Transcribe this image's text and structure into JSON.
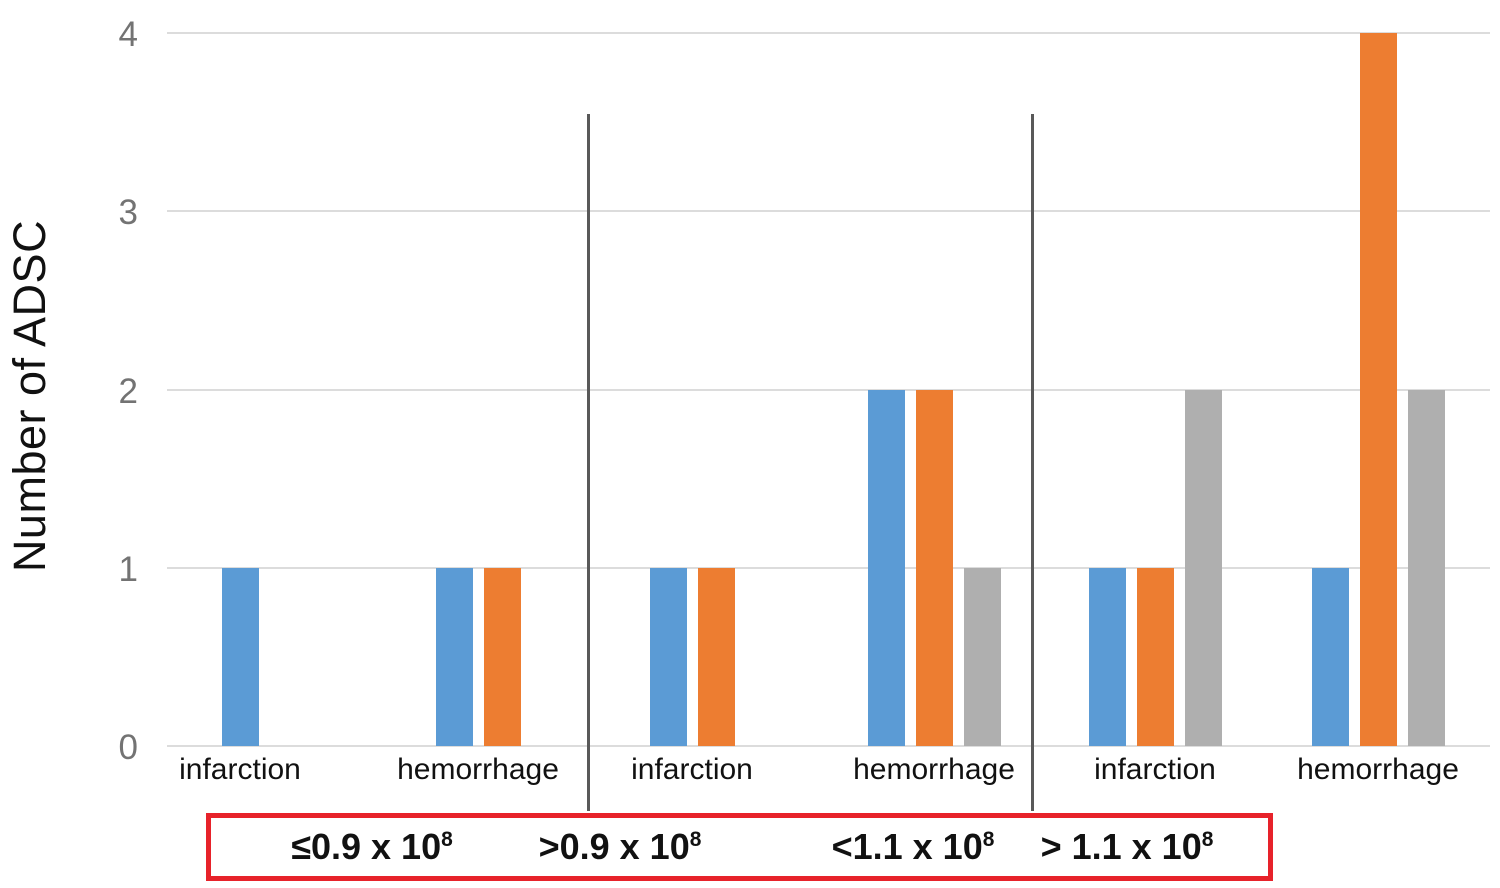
{
  "chart_data": {
    "type": "bar",
    "title": "",
    "ylabel": "Number of ADSC",
    "xlabel": "",
    "ylim": [
      0,
      4
    ],
    "yticks": [
      0,
      1,
      2,
      3,
      4
    ],
    "grid": true,
    "legend": "none",
    "series": [
      {
        "name": "series-1-blue",
        "color": "#5b9bd5"
      },
      {
        "name": "series-2-orange",
        "color": "#ed7d31"
      },
      {
        "name": "series-3-gray",
        "color": "#afafaf"
      }
    ],
    "categories": [
      "infarction",
      "hemorrhage",
      "infarction",
      "hemorrhage",
      "infarction",
      "hemorrhage"
    ],
    "series_values": [
      {
        "name": "series-1-blue",
        "values": [
          1,
          1,
          1,
          2,
          1,
          1
        ]
      },
      {
        "name": "series-2-orange",
        "values": [
          0,
          1,
          1,
          2,
          1,
          4
        ]
      },
      {
        "name": "series-3-gray",
        "values": [
          0,
          0,
          0,
          1,
          2,
          2
        ]
      }
    ],
    "dose_groups": [
      {
        "labels": [
          {
            "text": "≤0.9 x 10",
            "sup": "8"
          }
        ],
        "category_indexes": [
          0,
          1
        ]
      },
      {
        "labels": [
          {
            "text": ">0.9 x 10",
            "sup": "8"
          },
          {
            "text": "<1.1 x 10",
            "sup": "8"
          }
        ],
        "category_indexes": [
          2,
          3
        ]
      },
      {
        "labels": [
          {
            "text": "> 1.1 x 10",
            "sup": "8"
          }
        ],
        "category_indexes": [
          4,
          5
        ]
      }
    ],
    "annotations": {
      "divider_color": "#595959",
      "dose_box_border_color": "#e7222a",
      "gridline_color": "#dcdcdc",
      "tick_label_color": "#737373"
    }
  }
}
